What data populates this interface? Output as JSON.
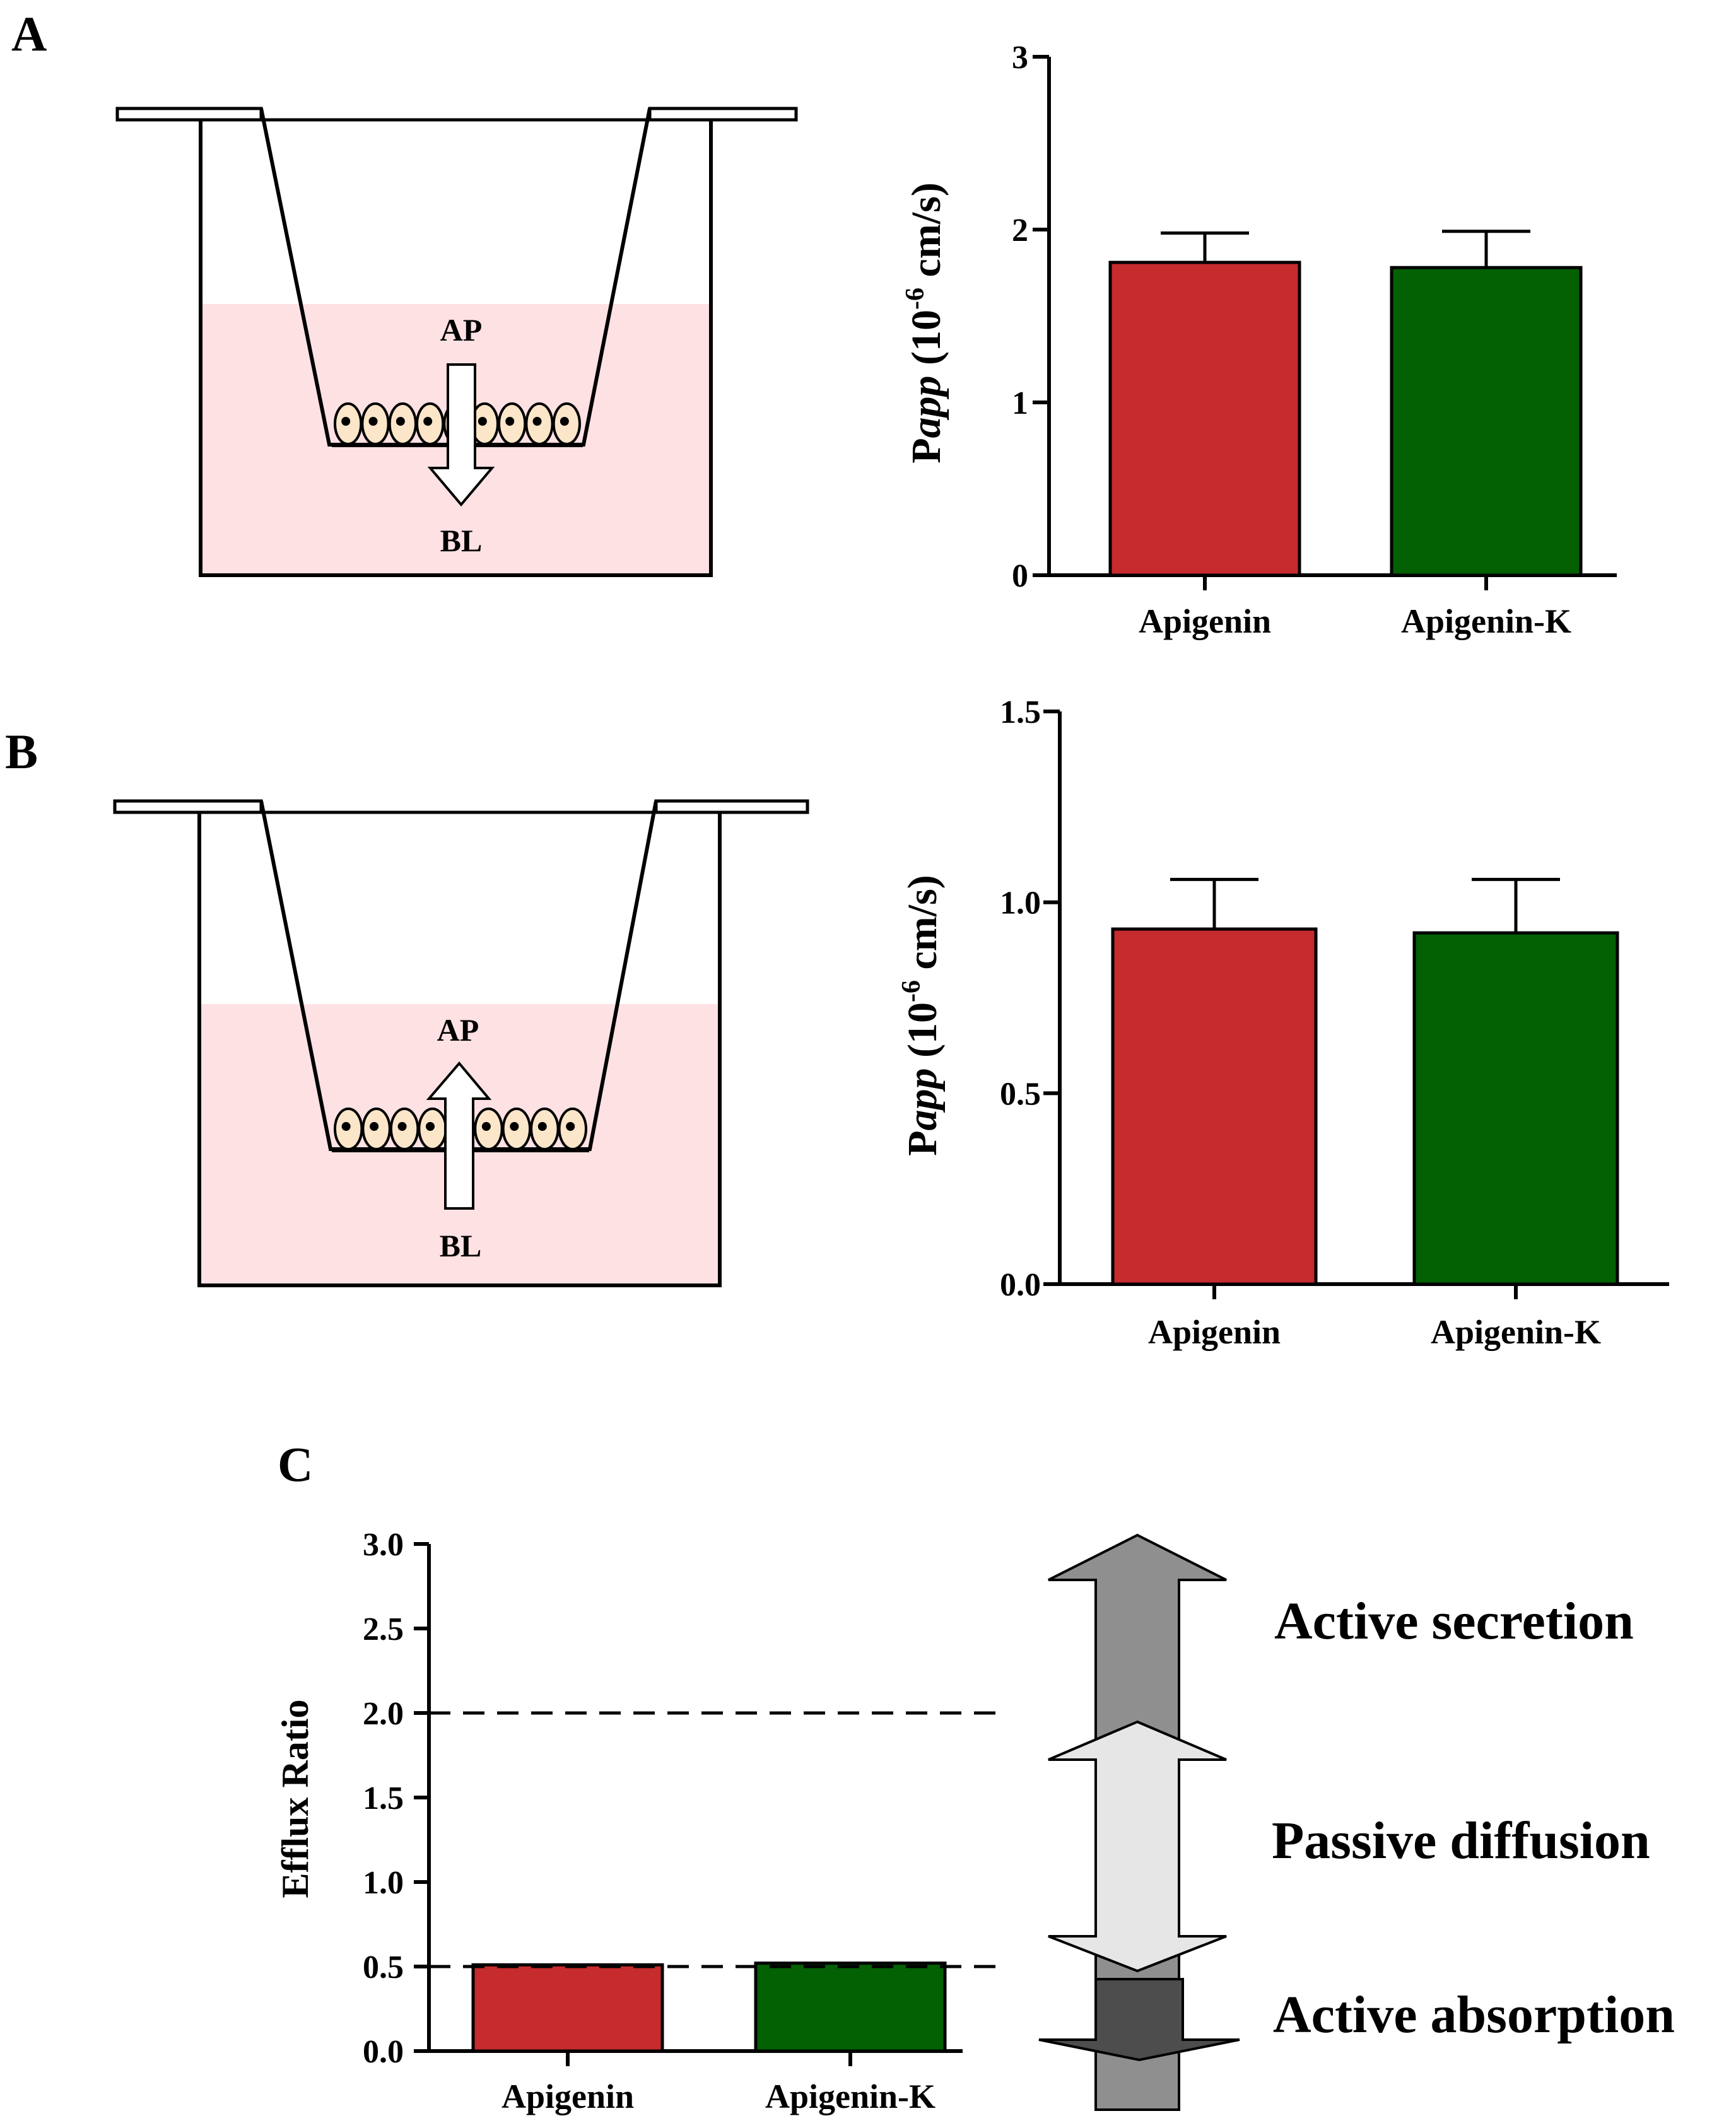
{
  "panels": {
    "a_label": "A",
    "b_label": "B",
    "c_label": "C"
  },
  "diagram_a": {
    "top_label": "AP",
    "bottom_label": "BL",
    "direction": "down"
  },
  "diagram_b": {
    "top_label": "AP",
    "bottom_label": "BL",
    "direction": "up"
  },
  "colors": {
    "apigenin": "#c62b2e",
    "apigenin_k": "#036003",
    "medium": "#fde1e3",
    "cell_fill": "#fbe6c9",
    "secretion_arrow": "#8f8f8f",
    "diffusion_arrow": "#e6e6e6",
    "absorption_arrow": "#4d4d4d"
  },
  "chart_data": [
    {
      "id": "chart-a",
      "type": "bar",
      "categories": [
        "Apigenin",
        "Apigenin-K"
      ],
      "values": [
        1.81,
        1.78
      ],
      "errors": [
        0.17,
        0.21
      ],
      "ylim": [
        0,
        3
      ],
      "yticks": [
        "0",
        "1",
        "2",
        "3"
      ],
      "ylabel_prefix": "P",
      "ylabel_italic": "app",
      "ylabel_unit_open": " (10",
      "ylabel_exponent": "-6",
      "ylabel_unit_close": " cm/s)"
    },
    {
      "id": "chart-b",
      "type": "bar",
      "categories": [
        "Apigenin",
        "Apigenin-K"
      ],
      "values": [
        0.93,
        0.92
      ],
      "errors": [
        0.13,
        0.14
      ],
      "ylim": [
        0,
        1.5
      ],
      "yticks": [
        "0.0",
        "0.5",
        "1.0",
        "1.5"
      ],
      "ylabel_prefix": "P",
      "ylabel_italic": "app",
      "ylabel_unit_open": " (10",
      "ylabel_exponent": "-6",
      "ylabel_unit_close": " cm/s)"
    },
    {
      "id": "chart-c",
      "type": "bar",
      "categories": [
        "Apigenin",
        "Apigenin-K"
      ],
      "values": [
        0.51,
        0.52
      ],
      "ylim": [
        0,
        3
      ],
      "yticks": [
        "0.0",
        "0.5",
        "1.0",
        "1.5",
        "2.0",
        "2.5",
        "3.0"
      ],
      "ylabel": "Efflux Ratio",
      "reference_lines": [
        0.5,
        2.0
      ],
      "zones": [
        "Active secretion",
        "Passive diffusion",
        "Active absorption"
      ]
    }
  ]
}
